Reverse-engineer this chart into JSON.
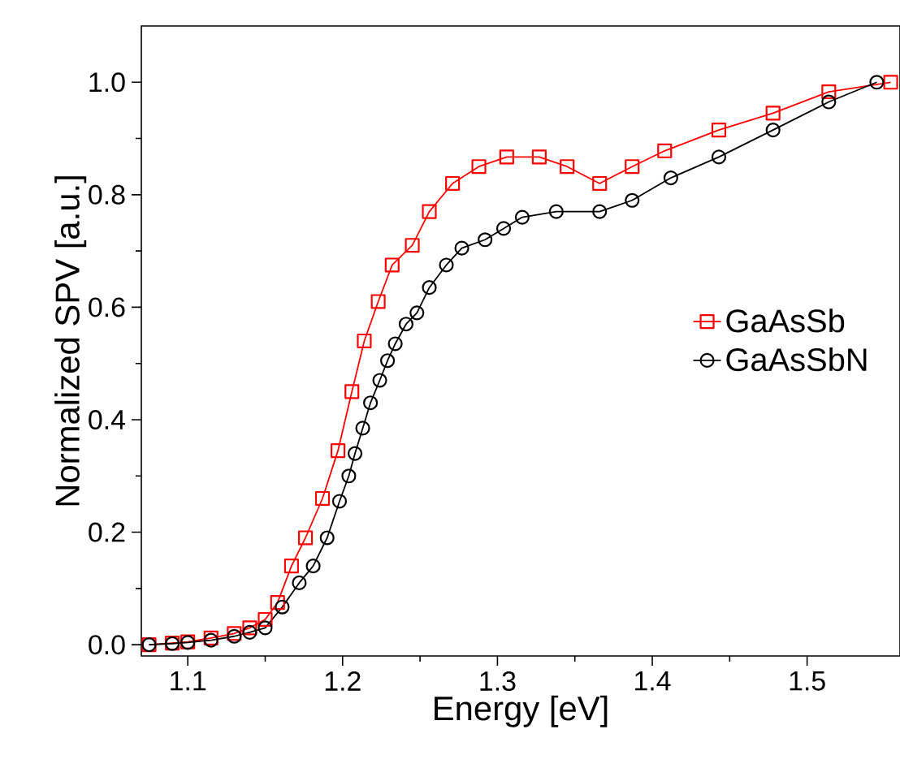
{
  "chart_data": {
    "type": "line",
    "xlabel": "Energy [eV]",
    "ylabel": "Normalized SPV [a.u.]",
    "xlim": [
      1.07,
      1.56
    ],
    "ylim": [
      -0.02,
      1.1
    ],
    "xticks": [
      1.1,
      1.2,
      1.3,
      1.4,
      1.5
    ],
    "yticks": [
      {
        "value": 0,
        "label": "0.0"
      },
      0.2,
      0.4,
      0.6,
      0.8,
      {
        "value": 1,
        "label": "1.0"
      }
    ],
    "grid": false,
    "legend": "right",
    "line_style": "solid",
    "series": [
      {
        "name": "GaAsSb",
        "color": "#ff0000",
        "marker": "square",
        "x": [
          1.075,
          1.09,
          1.1,
          1.115,
          1.13,
          1.14,
          1.15,
          1.158,
          1.167,
          1.176,
          1.187,
          1.197,
          1.206,
          1.214,
          1.223,
          1.232,
          1.245,
          1.256,
          1.271,
          1.288,
          1.306,
          1.327,
          1.345,
          1.366,
          1.387,
          1.408,
          1.443,
          1.478,
          1.514,
          1.554
        ],
        "values": [
          0.0,
          0.003,
          0.005,
          0.012,
          0.02,
          0.03,
          0.045,
          0.075,
          0.14,
          0.19,
          0.26,
          0.345,
          0.45,
          0.54,
          0.61,
          0.675,
          0.71,
          0.77,
          0.82,
          0.85,
          0.867,
          0.867,
          0.85,
          0.82,
          0.85,
          0.878,
          0.915,
          0.945,
          0.983,
          1.0
        ]
      },
      {
        "name": "GaAsSbN",
        "color": "#000000",
        "marker": "circle",
        "x": [
          1.075,
          1.09,
          1.1,
          1.115,
          1.13,
          1.14,
          1.15,
          1.161,
          1.172,
          1.181,
          1.19,
          1.198,
          1.204,
          1.208,
          1.213,
          1.218,
          1.224,
          1.229,
          1.234,
          1.241,
          1.248,
          1.256,
          1.267,
          1.277,
          1.292,
          1.304,
          1.316,
          1.338,
          1.366,
          1.387,
          1.412,
          1.443,
          1.478,
          1.514,
          1.545
        ],
        "values": [
          0.0,
          0.002,
          0.004,
          0.008,
          0.015,
          0.022,
          0.03,
          0.067,
          0.11,
          0.14,
          0.19,
          0.255,
          0.3,
          0.34,
          0.385,
          0.43,
          0.47,
          0.505,
          0.535,
          0.57,
          0.59,
          0.635,
          0.675,
          0.705,
          0.72,
          0.74,
          0.76,
          0.77,
          0.77,
          0.79,
          0.83,
          0.867,
          0.915,
          0.965,
          1.0
        ]
      }
    ]
  }
}
